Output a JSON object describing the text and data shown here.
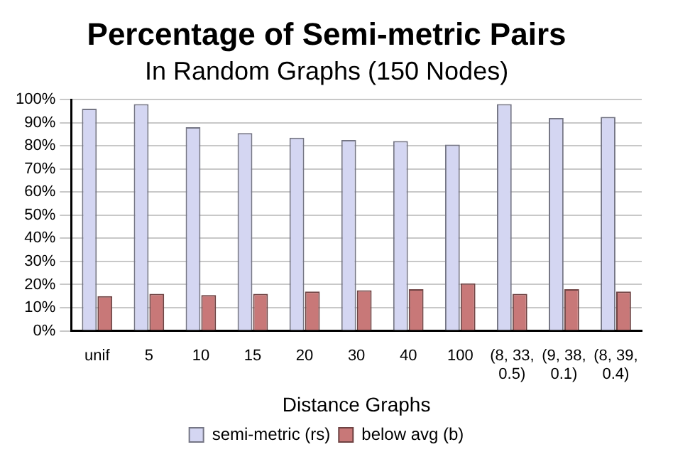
{
  "chart_data": {
    "type": "bar",
    "title": "Percentage of Semi-metric Pairs",
    "subtitle": "In Random Graphs (150 Nodes)",
    "xlabel": "Distance Graphs",
    "categories": [
      "unif",
      "5",
      "10",
      "15",
      "20",
      "30",
      "40",
      "100",
      "(8, 33, 0.5)",
      "(9, 38, 0.1)",
      "(8, 39, 0.4)"
    ],
    "series": [
      {
        "name": "semi-metric (rs)",
        "color": "#d4d6f2",
        "values": [
          96,
          98,
          88,
          85.5,
          83.5,
          82.5,
          82,
          80.5,
          98,
          92,
          92.5
        ]
      },
      {
        "name": "below avg (b)",
        "color": "#c87878",
        "values": [
          15,
          16,
          15.5,
          16,
          17,
          17.5,
          18,
          20.5,
          16,
          18,
          17
        ]
      }
    ],
    "ylim": [
      0,
      100
    ],
    "yticks": [
      {
        "value": 0,
        "label": "0%"
      },
      {
        "value": 10,
        "label": "10%"
      },
      {
        "value": 20,
        "label": "20%"
      },
      {
        "value": 30,
        "label": "30%"
      },
      {
        "value": 40,
        "label": "40%"
      },
      {
        "value": 50,
        "label": "50%"
      },
      {
        "value": 60,
        "label": "60%"
      },
      {
        "value": 70,
        "label": "70%"
      },
      {
        "value": 80,
        "label": "80%"
      },
      {
        "value": 90,
        "label": "90%"
      },
      {
        "value": 100,
        "label": "100%"
      }
    ],
    "grid": "y",
    "legend": "bottom"
  }
}
